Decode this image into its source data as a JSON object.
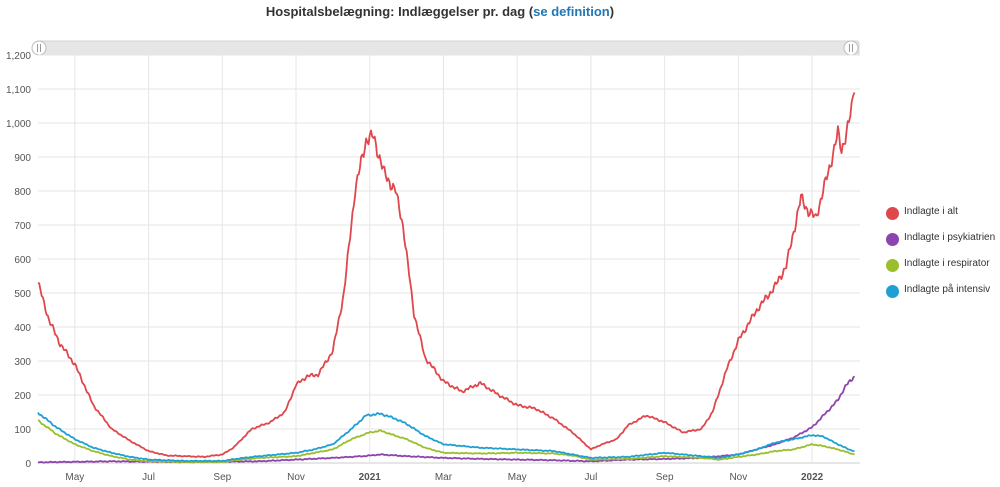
{
  "chart_data": {
    "type": "line",
    "title_prefix": "Hospitalsbelægning: Indlæggelser pr. dag (",
    "title_link": "se definition",
    "title_suffix": ")",
    "x_ticks": [
      "May",
      "Jul",
      "Sep",
      "Nov",
      "2021",
      "Mar",
      "May",
      "Jul",
      "Sep",
      "Nov",
      "2022"
    ],
    "x_tick_months": [
      1,
      3,
      5,
      7,
      9,
      11,
      13,
      15,
      17,
      19,
      21
    ],
    "x_range_months": [
      0.0,
      22.3
    ],
    "y_ticks": [
      "0",
      "100",
      "200",
      "300",
      "400",
      "500",
      "600",
      "700",
      "800",
      "900",
      "1,000",
      "1,100",
      "1,200"
    ],
    "ylim": [
      0,
      1200
    ],
    "grid": true,
    "legend_position": "right",
    "series": [
      {
        "name": "Indlagte i alt",
        "color": "#e0474c",
        "points": [
          [
            0,
            530
          ],
          [
            0.3,
            420
          ],
          [
            0.6,
            350
          ],
          [
            1,
            290
          ],
          [
            1.5,
            170
          ],
          [
            2,
            100
          ],
          [
            2.5,
            65
          ],
          [
            3,
            35
          ],
          [
            3.5,
            22
          ],
          [
            4,
            20
          ],
          [
            4.5,
            18
          ],
          [
            5,
            25
          ],
          [
            5.3,
            45
          ],
          [
            5.8,
            100
          ],
          [
            6.3,
            120
          ],
          [
            6.7,
            150
          ],
          [
            7,
            230
          ],
          [
            7.3,
            255
          ],
          [
            7.6,
            260
          ],
          [
            8,
            330
          ],
          [
            8.3,
            500
          ],
          [
            8.6,
            800
          ],
          [
            8.9,
            950
          ],
          [
            9.1,
            960
          ],
          [
            9.4,
            850
          ],
          [
            9.7,
            800
          ],
          [
            9.9,
            700
          ],
          [
            10.2,
            440
          ],
          [
            10.5,
            310
          ],
          [
            11,
            240
          ],
          [
            11.5,
            210
          ],
          [
            12,
            235
          ],
          [
            12.5,
            200
          ],
          [
            13,
            170
          ],
          [
            13.5,
            160
          ],
          [
            14,
            130
          ],
          [
            14.5,
            90
          ],
          [
            15,
            40
          ],
          [
            15.3,
            55
          ],
          [
            15.7,
            70
          ],
          [
            16,
            110
          ],
          [
            16.5,
            140
          ],
          [
            17,
            120
          ],
          [
            17.5,
            90
          ],
          [
            18,
            100
          ],
          [
            18.3,
            150
          ],
          [
            18.7,
            280
          ],
          [
            19,
            360
          ],
          [
            19.5,
            450
          ],
          [
            20,
            520
          ],
          [
            20.3,
            580
          ],
          [
            20.7,
            780
          ],
          [
            20.9,
            740
          ],
          [
            21.1,
            720
          ],
          [
            21.3,
            800
          ],
          [
            21.5,
            880
          ],
          [
            21.7,
            970
          ],
          [
            21.8,
            920
          ],
          [
            22.0,
            1000
          ],
          [
            22.15,
            1090
          ]
        ]
      },
      {
        "name": "Indlagte i psykiatrien",
        "color": "#8e44ad",
        "points": [
          [
            0,
            2
          ],
          [
            2,
            5
          ],
          [
            4,
            3
          ],
          [
            6,
            5
          ],
          [
            8,
            15
          ],
          [
            8.8,
            20
          ],
          [
            9.3,
            25
          ],
          [
            10,
            20
          ],
          [
            11,
            15
          ],
          [
            12,
            12
          ],
          [
            13,
            10
          ],
          [
            14,
            8
          ],
          [
            15,
            5
          ],
          [
            16,
            10
          ],
          [
            17,
            12
          ],
          [
            18,
            15
          ],
          [
            19,
            25
          ],
          [
            19.5,
            40
          ],
          [
            20,
            55
          ],
          [
            20.5,
            75
          ],
          [
            21,
            105
          ],
          [
            21.4,
            150
          ],
          [
            21.7,
            185
          ],
          [
            21.9,
            225
          ],
          [
            22.15,
            255
          ]
        ]
      },
      {
        "name": "Indlagte i respirator",
        "color": "#9bbf2c",
        "points": [
          [
            0,
            125
          ],
          [
            0.5,
            85
          ],
          [
            1,
            55
          ],
          [
            1.5,
            35
          ],
          [
            2,
            20
          ],
          [
            2.5,
            10
          ],
          [
            3,
            5
          ],
          [
            4,
            3
          ],
          [
            5,
            3
          ],
          [
            5.5,
            10
          ],
          [
            6,
            15
          ],
          [
            7,
            20
          ],
          [
            7.5,
            30
          ],
          [
            8,
            40
          ],
          [
            8.5,
            70
          ],
          [
            9,
            90
          ],
          [
            9.3,
            95
          ],
          [
            9.7,
            80
          ],
          [
            10,
            70
          ],
          [
            10.5,
            45
          ],
          [
            11,
            30
          ],
          [
            12,
            28
          ],
          [
            13,
            30
          ],
          [
            14,
            28
          ],
          [
            14.5,
            22
          ],
          [
            15,
            10
          ],
          [
            16,
            12
          ],
          [
            17,
            20
          ],
          [
            18,
            15
          ],
          [
            18.5,
            10
          ],
          [
            19,
            18
          ],
          [
            19.5,
            25
          ],
          [
            20,
            35
          ],
          [
            20.5,
            40
          ],
          [
            21,
            55
          ],
          [
            21.3,
            50
          ],
          [
            21.7,
            40
          ],
          [
            22,
            30
          ],
          [
            22.15,
            25
          ]
        ]
      },
      {
        "name": "Indlagte på intensiv",
        "color": "#1ea0d2",
        "points": [
          [
            0,
            148
          ],
          [
            0.5,
            105
          ],
          [
            1,
            70
          ],
          [
            1.5,
            45
          ],
          [
            2,
            30
          ],
          [
            2.5,
            18
          ],
          [
            3,
            10
          ],
          [
            4,
            6
          ],
          [
            5,
            6
          ],
          [
            5.5,
            14
          ],
          [
            6,
            20
          ],
          [
            7,
            30
          ],
          [
            7.5,
            40
          ],
          [
            8,
            55
          ],
          [
            8.5,
            100
          ],
          [
            8.9,
            140
          ],
          [
            9.3,
            145
          ],
          [
            9.7,
            130
          ],
          [
            10,
            115
          ],
          [
            10.5,
            80
          ],
          [
            11,
            55
          ],
          [
            12,
            45
          ],
          [
            13,
            40
          ],
          [
            14,
            35
          ],
          [
            14.5,
            25
          ],
          [
            15,
            15
          ],
          [
            16,
            18
          ],
          [
            17,
            30
          ],
          [
            18,
            20
          ],
          [
            18.5,
            15
          ],
          [
            19,
            25
          ],
          [
            19.5,
            40
          ],
          [
            20,
            60
          ],
          [
            20.5,
            70
          ],
          [
            21,
            82
          ],
          [
            21.3,
            78
          ],
          [
            21.7,
            55
          ],
          [
            22,
            40
          ],
          [
            22.15,
            35
          ]
        ]
      }
    ]
  }
}
